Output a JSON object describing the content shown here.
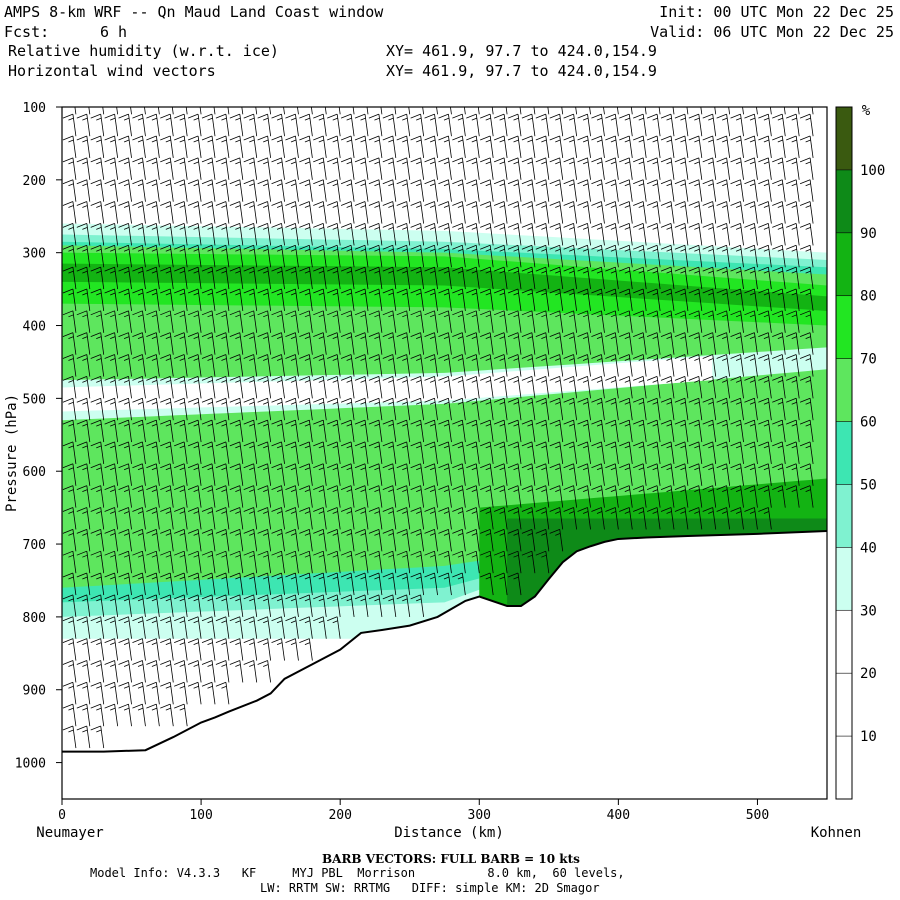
{
  "header": {
    "title": "AMPS 8-km WRF -- Qn Maud Land Coast window",
    "init": "Init: 00 UTC Mon 22 Dec 25",
    "fcst_label": "Fcst:",
    "fcst_value": "6 h",
    "valid": "Valid: 06 UTC Mon 22 Dec 25",
    "field1": "Relative humidity (w.r.t. ice)",
    "field2": "Horizontal wind vectors",
    "xy1": "XY= 461.9, 97.7 to 424.0,154.9",
    "xy2": "XY= 461.9, 97.7 to 424.0,154.9"
  },
  "footer": {
    "barb_note": "BARB VECTORS:  FULL BARB = 10 kts",
    "model_line1": "Model Info: V4.3.3   KF     MYJ PBL  Morrison          8.0 km,  60 levels,",
    "model_line2": "LW: RRTM SW: RRTMG   DIFF: simple KM: 2D Smagor"
  },
  "chart_data": {
    "type": "heatmap",
    "title": "Relative humidity (w.r.t. ice) cross-section with horizontal wind vectors",
    "xlabel": "Distance (km)",
    "ylabel": "Pressure (hPa)",
    "xlim": [
      0,
      550
    ],
    "ylim": [
      1050,
      100
    ],
    "x_ticks": [
      0,
      100,
      200,
      300,
      400,
      500
    ],
    "y_ticks": [
      100,
      200,
      300,
      400,
      500,
      600,
      700,
      800,
      900,
      1000
    ],
    "x_endpoints": {
      "left": "Neumayer",
      "right": "Kohnen"
    },
    "colorbar": {
      "unit": "%",
      "levels": [
        10,
        20,
        30,
        40,
        50,
        60,
        70,
        80,
        90,
        100
      ],
      "bands": [
        {
          "from": 0,
          "to": 10,
          "color": "#ffffff"
        },
        {
          "from": 10,
          "to": 20,
          "color": "#ffffff"
        },
        {
          "from": 20,
          "to": 30,
          "color": "#ffffff"
        },
        {
          "from": 30,
          "to": 40,
          "color": "#ccfff0"
        },
        {
          "from": 40,
          "to": 50,
          "color": "#7ff2d0"
        },
        {
          "from": 50,
          "to": 60,
          "color": "#3de6b2"
        },
        {
          "from": 60,
          "to": 70,
          "color": "#5ee65e"
        },
        {
          "from": 70,
          "to": 80,
          "color": "#22e622"
        },
        {
          "from": 80,
          "to": 90,
          "color": "#13b313"
        },
        {
          "from": 90,
          "to": 100,
          "color": "#0e8a18"
        },
        {
          "from": 100,
          "to": 110,
          "color": "#3a5a10"
        }
      ]
    },
    "terrain": {
      "distance_km": [
        0,
        30,
        60,
        80,
        100,
        110,
        120,
        140,
        150,
        160,
        180,
        200,
        215,
        230,
        250,
        270,
        290,
        300,
        320,
        330,
        340,
        350,
        360,
        370,
        380,
        390,
        400,
        420,
        450,
        500,
        550
      ],
      "surface_pressure_hPa": [
        985,
        985,
        983,
        965,
        945,
        938,
        930,
        915,
        905,
        885,
        865,
        845,
        822,
        818,
        812,
        800,
        778,
        772,
        785,
        785,
        772,
        748,
        725,
        710,
        703,
        697,
        693,
        691,
        689,
        686,
        682
      ]
    },
    "rh_layers": [
      {
        "top_hPa": [
          260,
          270,
          300
        ],
        "bottom_hPa": [
          830,
          830,
          560
        ],
        "rh": 35
      },
      {
        "top_hPa": [
          275,
          285,
          310
        ],
        "bottom_hPa": [
          800,
          780,
          590
        ],
        "rh": 45
      },
      {
        "top_hPa": [
          285,
          295,
          320
        ],
        "bottom_hPa": [
          780,
          760,
          620
        ],
        "rh": 55
      },
      {
        "top_hPa": [
          290,
          300,
          330
        ],
        "bottom_hPa": [
          760,
          730,
          650
        ],
        "rh": 65
      },
      {
        "top_hPa": [
          300,
          305,
          345
        ],
        "bottom_hPa": [
          370,
          375,
          400
        ],
        "rh": 75
      },
      {
        "top_hPa": [
          315,
          320,
          360
        ],
        "bottom_hPa": [
          340,
          345,
          380
        ],
        "rh": 85
      }
    ],
    "dry_layer_rh": 15,
    "dry_layer_center_hPa": [
      500,
      485,
      445
    ],
    "barb_columns_km": [
      10,
      20,
      30,
      40,
      50,
      60,
      70,
      80,
      90,
      100,
      110,
      120,
      130,
      140,
      150,
      160,
      170,
      180,
      190,
      200,
      210,
      220,
      230,
      240,
      250,
      260,
      270,
      280,
      290,
      300,
      310,
      320,
      330,
      340,
      350,
      360,
      370,
      380,
      390,
      400,
      410,
      420,
      430,
      440,
      450,
      460,
      470,
      480,
      490,
      500,
      510,
      520,
      530,
      540
    ],
    "barb_levels_hPa": [
      110,
      140,
      170,
      200,
      230,
      260,
      290,
      320,
      350,
      380,
      410,
      440,
      470,
      500,
      530,
      560,
      590,
      620,
      650,
      680,
      710,
      740,
      770,
      800,
      830,
      860,
      890,
      920,
      950,
      980
    ],
    "wind_speed_kts": 15
  }
}
